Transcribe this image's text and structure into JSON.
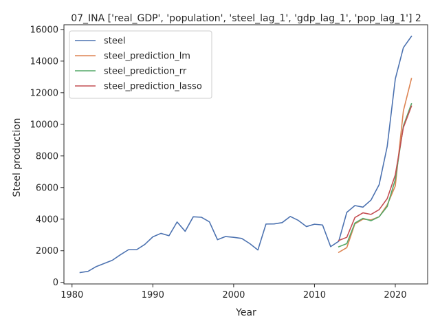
{
  "chart_data": {
    "type": "line",
    "title": "07_INA ['real_GDP', 'population', 'steel_lag_1', 'gdp_lag_1', 'pop_lag_1'] 2",
    "xlabel": "Year",
    "ylabel": "Steel production",
    "xlim": [
      1979,
      2024
    ],
    "ylim": [
      -100,
      16300
    ],
    "xticks": [
      1980,
      1990,
      2000,
      2010,
      2020
    ],
    "yticks": [
      0,
      2000,
      4000,
      6000,
      8000,
      10000,
      12000,
      14000,
      16000
    ],
    "legend": "upper-left",
    "grid": false,
    "series": [
      {
        "name": "steel",
        "color": "#4c72b0",
        "x": [
          1981,
          1982,
          1983,
          1984,
          1985,
          1986,
          1987,
          1988,
          1989,
          1990,
          1991,
          1992,
          1993,
          1994,
          1995,
          1996,
          1997,
          1998,
          1999,
          2000,
          2001,
          2002,
          2003,
          2004,
          2005,
          2006,
          2007,
          2008,
          2009,
          2010,
          2011,
          2012,
          2013,
          2014,
          2015,
          2016,
          2017,
          2018,
          2019,
          2020,
          2021,
          2022
        ],
        "y": [
          620,
          700,
          1000,
          1200,
          1400,
          1750,
          2070,
          2070,
          2400,
          2880,
          3100,
          2950,
          3820,
          3230,
          4150,
          4120,
          3830,
          2700,
          2900,
          2850,
          2780,
          2450,
          2050,
          3690,
          3700,
          3780,
          4170,
          3920,
          3530,
          3680,
          3630,
          2260,
          2600,
          4430,
          4860,
          4760,
          5210,
          6180,
          8600,
          12870,
          14850,
          15570
        ]
      },
      {
        "name": "steel_prediction_lm",
        "color": "#dd8452",
        "x": [
          2013,
          2014,
          2015,
          2016,
          2017,
          2018,
          2019,
          2020,
          2021,
          2022
        ],
        "y": [
          1900,
          2200,
          3700,
          4000,
          3950,
          4150,
          4900,
          6100,
          10850,
          12900
        ]
      },
      {
        "name": "steel_prediction_rr",
        "color": "#55a868",
        "x": [
          2013,
          2014,
          2015,
          2016,
          2017,
          2018,
          2019,
          2020,
          2021,
          2022
        ],
        "y": [
          2250,
          2450,
          3750,
          4050,
          3900,
          4150,
          4800,
          6500,
          9900,
          11300
        ]
      },
      {
        "name": "steel_prediction_lasso",
        "color": "#c44e52",
        "x": [
          2013,
          2014,
          2015,
          2016,
          2017,
          2018,
          2019,
          2020,
          2021,
          2022
        ],
        "y": [
          2650,
          2850,
          4100,
          4400,
          4300,
          4600,
          5300,
          6800,
          9800,
          11150
        ]
      }
    ]
  }
}
